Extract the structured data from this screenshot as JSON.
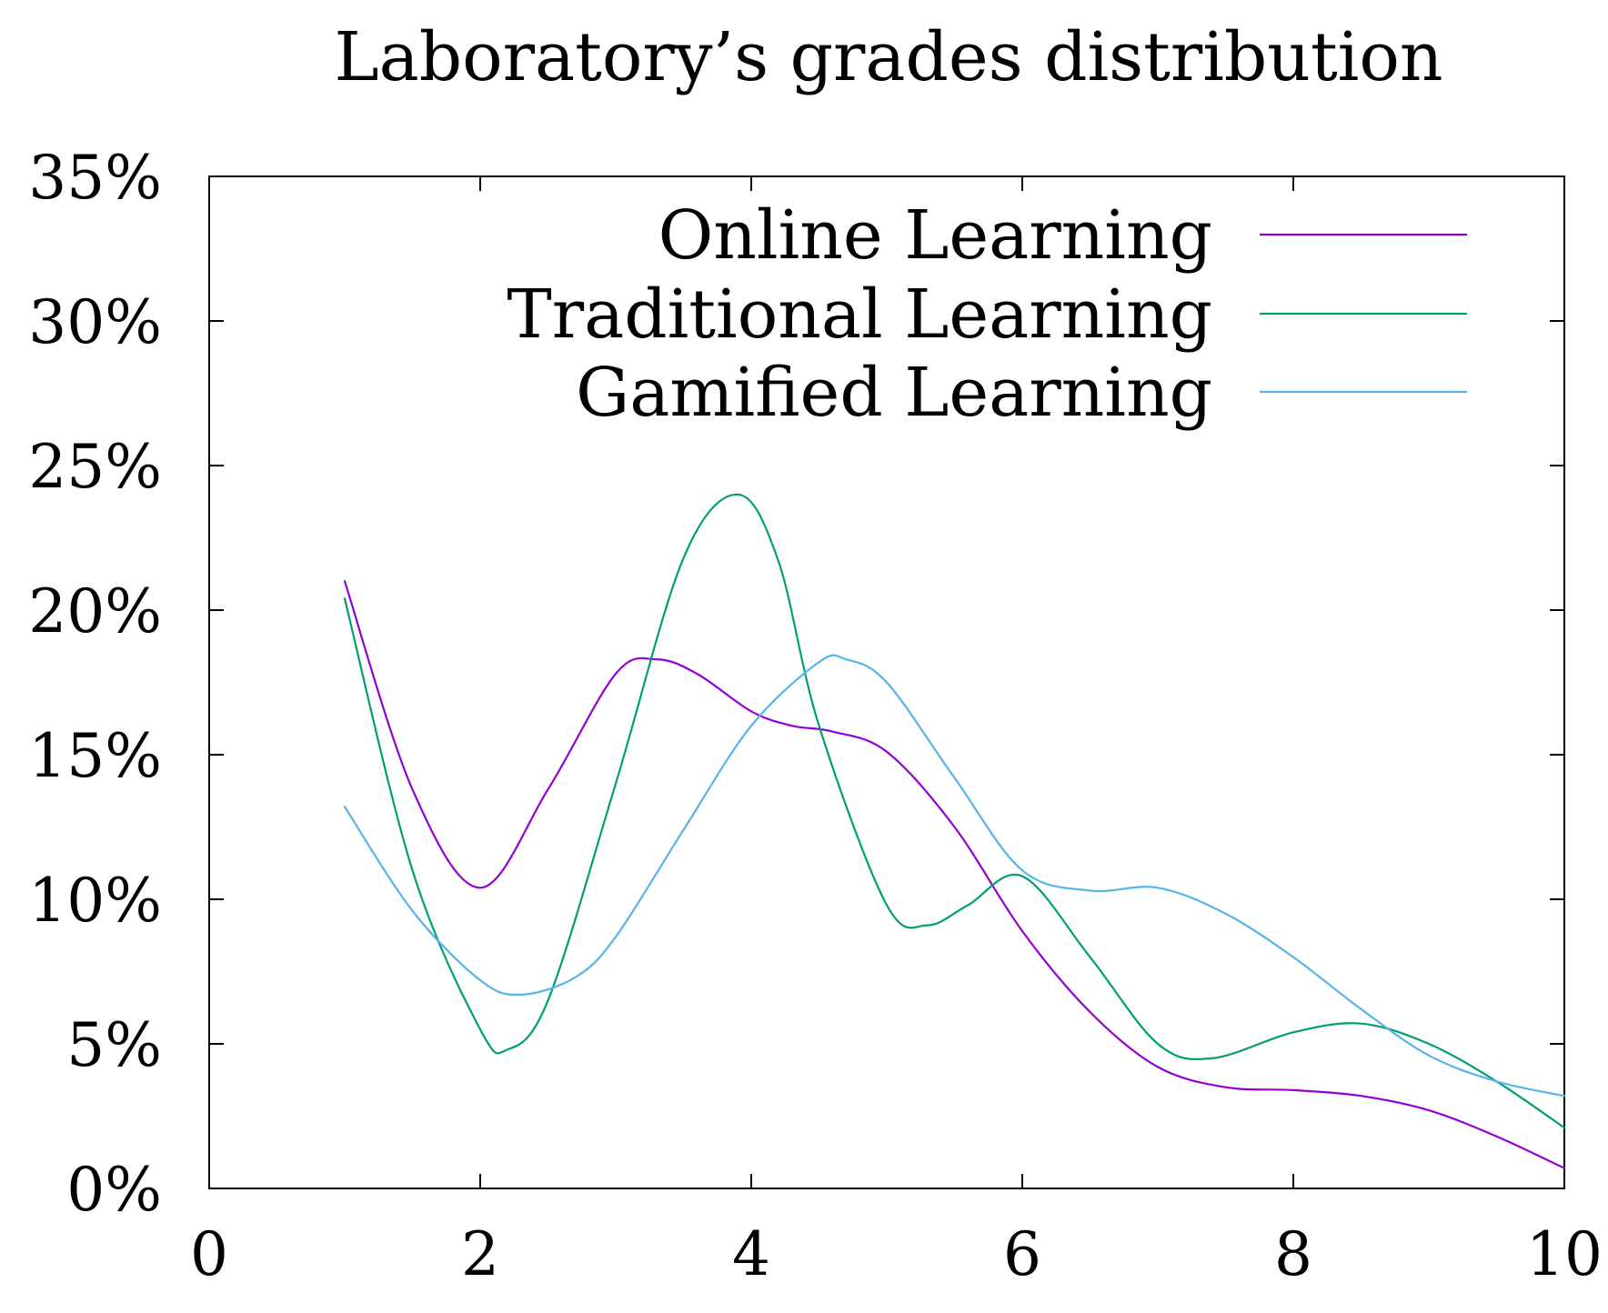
{
  "chart_data": {
    "type": "line",
    "title": "Laboratory’s grades distribution",
    "xlabel": "",
    "ylabel": "",
    "xlim": [
      0,
      10
    ],
    "ylim": [
      0,
      35
    ],
    "x_ticks": [
      0,
      2,
      4,
      6,
      8,
      10
    ],
    "y_ticks": [
      0,
      5,
      10,
      15,
      20,
      25,
      30,
      35
    ],
    "y_tick_labels": [
      "0%",
      "5%",
      "10%",
      "15%",
      "20%",
      "25%",
      "30%",
      "35%"
    ],
    "grid": false,
    "legend_position": "top-right",
    "series": [
      {
        "name": "Online Learning",
        "color": "#9400d3",
        "x": [
          1,
          1.5,
          2,
          2.5,
          3,
          3.3,
          3.6,
          4,
          4.3,
          4.6,
          5,
          5.5,
          6,
          6.5,
          7,
          7.5,
          8,
          8.5,
          9,
          9.5,
          10
        ],
        "y": [
          21.0,
          13.8,
          10.4,
          13.8,
          17.8,
          18.3,
          17.8,
          16.5,
          16.0,
          15.8,
          15.1,
          12.5,
          8.9,
          6.1,
          4.2,
          3.5,
          3.4,
          3.2,
          2.7,
          1.8,
          0.7
        ]
      },
      {
        "name": "Traditional Learning",
        "color": "#009e73",
        "x": [
          1,
          1.5,
          2,
          2.2,
          2.5,
          3,
          3.5,
          3.9,
          4.2,
          4.5,
          5,
          5.3,
          5.6,
          6,
          6.5,
          7,
          7.4,
          8,
          8.5,
          9,
          9.5,
          10
        ],
        "y": [
          20.4,
          11.0,
          5.5,
          4.8,
          6.5,
          14.0,
          21.8,
          24.0,
          21.7,
          16.0,
          9.8,
          9.1,
          9.8,
          10.8,
          8.0,
          5.0,
          4.5,
          5.4,
          5.7,
          5.0,
          3.7,
          2.1
        ]
      },
      {
        "name": "Gamified Learning",
        "color": "#56b4e9",
        "x": [
          1,
          1.5,
          2,
          2.3,
          2.7,
          3,
          3.5,
          4,
          4.5,
          4.7,
          5,
          5.5,
          6,
          6.5,
          7,
          7.5,
          8,
          8.5,
          9,
          9.5,
          10
        ],
        "y": [
          13.2,
          9.6,
          7.2,
          6.7,
          7.3,
          8.7,
          12.4,
          16.0,
          18.2,
          18.3,
          17.5,
          14.2,
          11.0,
          10.3,
          10.4,
          9.5,
          8.0,
          6.2,
          4.6,
          3.7,
          3.2
        ]
      }
    ]
  }
}
